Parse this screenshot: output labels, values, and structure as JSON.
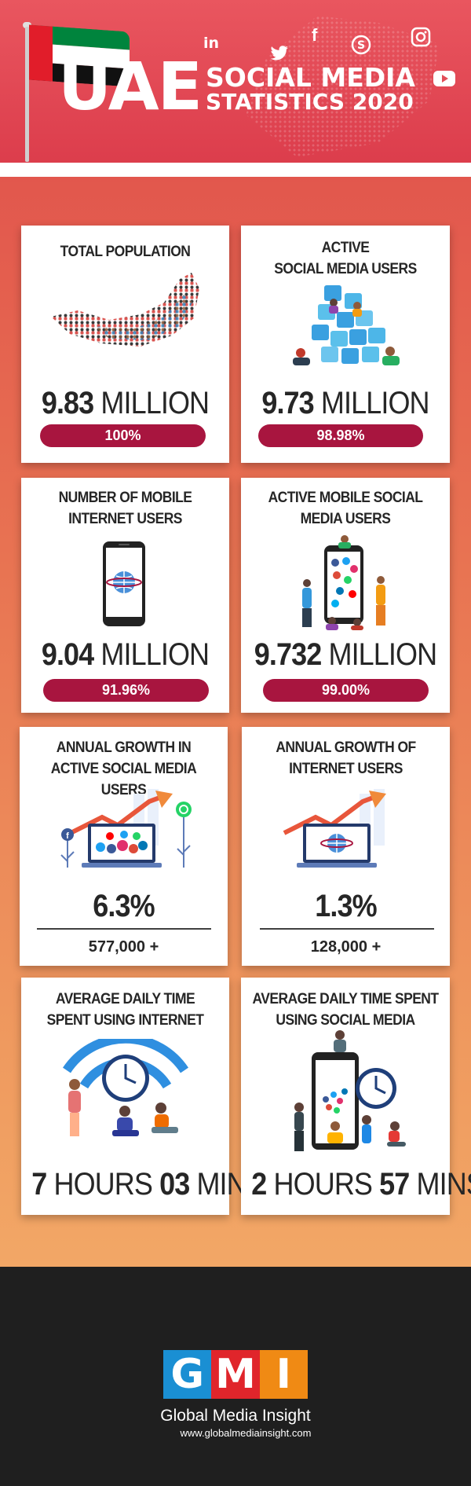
{
  "header": {
    "title_main": "UAE",
    "title_line1": "SOCIAL MEDIA",
    "title_line2": "STATISTICS 2020",
    "social_icons": [
      "linkedin-icon",
      "twitter-icon",
      "facebook-icon",
      "skype-icon",
      "instagram-icon",
      "youtube-icon"
    ],
    "flag_colors": [
      "#00843d",
      "#ffffff",
      "#111111",
      "#e11d2a"
    ]
  },
  "cards": {
    "population": {
      "title": "TOTAL POPULATION",
      "value": "9.83",
      "unit": "MILLION",
      "percent": "100%"
    },
    "social_users": {
      "title_l1": "ACTIVE",
      "title_l2": "SOCIAL MEDIA USERS",
      "value": "9.73",
      "unit": "MILLION",
      "percent": "98.98%"
    },
    "mobile_internet": {
      "title_l1": "NUMBER OF MOBILE",
      "title_l2": "INTERNET USERS",
      "value": "9.04",
      "unit": "MILLION",
      "percent": "91.96%"
    },
    "mobile_social": {
      "title_l1": "ACTIVE MOBILE SOCIAL",
      "title_l2": "MEDIA USERS",
      "value": "9.732",
      "unit": "MILLION",
      "percent": "99.00%"
    },
    "growth_social": {
      "title_l1": "ANNUAL GROWTH IN",
      "title_l2": "ACTIVE SOCIAL MEDIA USERS",
      "value": "6.3%",
      "sub": "577,000 +"
    },
    "growth_internet": {
      "title_l1": "ANNUAL GROWTH OF",
      "title_l2": "INTERNET USERS",
      "value": "1.3%",
      "sub": "128,000 +"
    },
    "time_internet": {
      "title_l1": "AVERAGE DAILY TIME",
      "title_l2": "SPENT USING INTERNET",
      "hours": "7",
      "hours_label": "HOURS",
      "mins": "03",
      "mins_label": "MINS"
    },
    "time_social": {
      "title_l1": "AVERAGE DAILY TIME SPENT",
      "title_l2": "USING SOCIAL MEDIA",
      "hours": "2",
      "hours_label": "HOURS",
      "mins": "57",
      "mins_label": "MINS"
    }
  },
  "colors": {
    "accent": "#a8153f",
    "header": "#e24d58",
    "footer": "#1f1f1f"
  },
  "footer": {
    "logo_letters": [
      "G",
      "M",
      "I"
    ],
    "logo_colors": [
      "#1a8fd3",
      "#e0252b",
      "#f08a14"
    ],
    "name": "Global Media Insight",
    "url": "www.globalmediainsight.com"
  }
}
